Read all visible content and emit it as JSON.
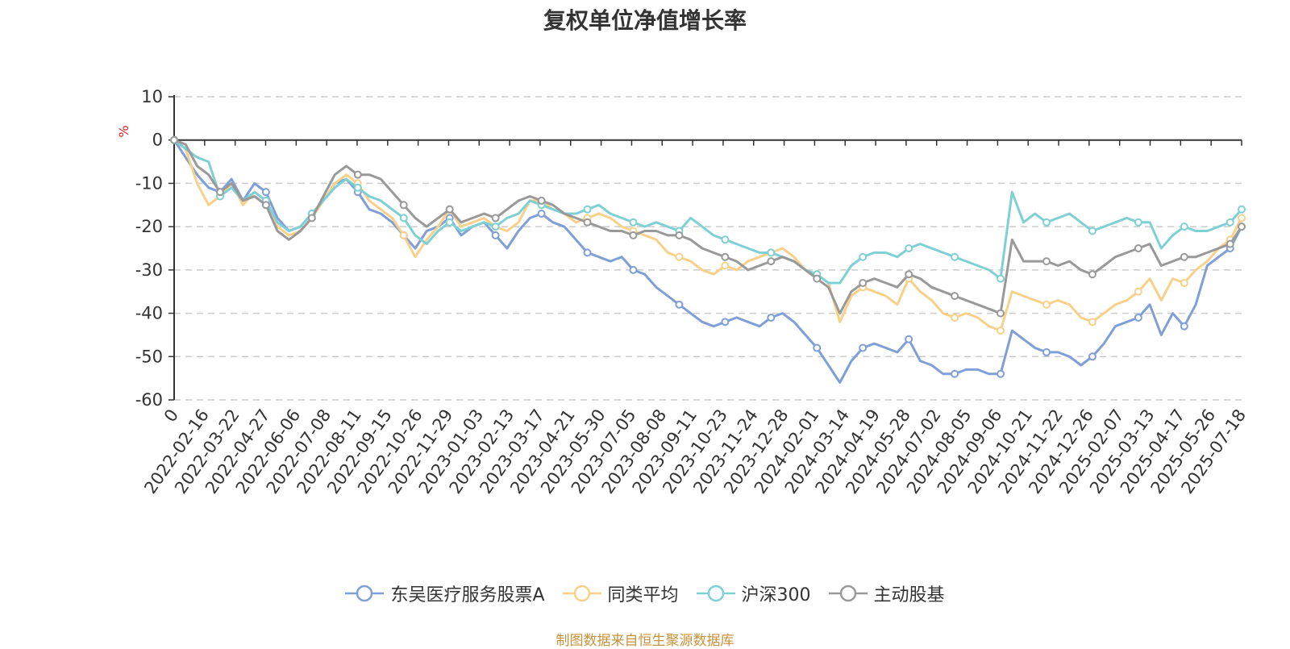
{
  "title": "复权单位净值增长率",
  "source": "制图数据来自恒生聚源数据库",
  "chart_data": {
    "type": "line",
    "title": "复权单位净值增长率",
    "ylabel": "%",
    "ylim": [
      -60,
      10
    ],
    "yticks": [
      10,
      0,
      -10,
      -20,
      -30,
      -40,
      -50,
      -60
    ],
    "grid": true,
    "legend_position": "bottom",
    "x_start": "2022-01-11",
    "x_end": "2025-07-18",
    "xtick_labels": [
      "0",
      "2022-02-16",
      "2022-03-22",
      "2022-04-27",
      "2022-06-06",
      "2022-07-08",
      "2022-08-11",
      "2022-09-15",
      "2022-10-26",
      "2022-11-29",
      "2023-01-03",
      "2023-02-13",
      "2023-03-17",
      "2023-04-21",
      "2023-05-30",
      "2023-07-05",
      "2023-08-08",
      "2023-09-11",
      "2023-10-23",
      "2023-11-24",
      "2023-12-28",
      "2024-02-01",
      "2024-03-14",
      "2024-04-19",
      "2024-05-28",
      "2024-07-02",
      "2024-08-05",
      "2024-09-06",
      "2024-10-21",
      "2024-11-22",
      "2024-12-26",
      "2025-02-07",
      "2025-03-13",
      "2025-04-17",
      "2025-05-26",
      "2025-07-18"
    ],
    "series": [
      {
        "name": "东吴医疗服务股票A",
        "color": "#7f9fd6",
        "values": [
          0,
          -4,
          -8,
          -11,
          -12,
          -9,
          -14,
          -10,
          -12,
          -18,
          -21,
          -20,
          -17,
          -14,
          -10,
          -9,
          -12,
          -16,
          -17,
          -19,
          -22,
          -25,
          -21,
          -20,
          -18,
          -22,
          -20,
          -19,
          -22,
          -25,
          -21,
          -18,
          -17,
          -19,
          -20,
          -23,
          -26,
          -27,
          -28,
          -27,
          -30,
          -31,
          -34,
          -36,
          -38,
          -40,
          -42,
          -43,
          -42,
          -41,
          -42,
          -43,
          -41,
          -40,
          -42,
          -45,
          -48,
          -52,
          -56,
          -51,
          -48,
          -47,
          -48,
          -49,
          -46,
          -51,
          -52,
          -54,
          -54,
          -53,
          -53,
          -54,
          -54,
          -44,
          -46,
          -48,
          -49,
          -49,
          -50,
          -52,
          -50,
          -47,
          -43,
          -42,
          -41,
          -38,
          -45,
          -40,
          -43,
          -38,
          -29,
          -27,
          -25,
          -20
        ]
      },
      {
        "name": "同类平均",
        "color": "#f7d08a",
        "values": [
          0,
          -2,
          -10,
          -15,
          -13,
          -10,
          -15,
          -12,
          -14,
          -20,
          -22,
          -21,
          -18,
          -14,
          -10,
          -8,
          -10,
          -14,
          -16,
          -18,
          -22,
          -27,
          -23,
          -20,
          -16,
          -20,
          -19,
          -18,
          -20,
          -21,
          -19,
          -14,
          -14,
          -16,
          -17,
          -19,
          -18,
          -17,
          -18,
          -20,
          -21,
          -22,
          -23,
          -26,
          -27,
          -28,
          -30,
          -31,
          -29,
          -30,
          -28,
          -27,
          -26,
          -25,
          -27,
          -30,
          -31,
          -33,
          -42,
          -36,
          -34,
          -35,
          -36,
          -38,
          -32,
          -35,
          -37,
          -40,
          -41,
          -40,
          -41,
          -43,
          -44,
          -35,
          -36,
          -37,
          -38,
          -37,
          -38,
          -41,
          -42,
          -40,
          -38,
          -37,
          -35,
          -32,
          -37,
          -32,
          -33,
          -30,
          -28,
          -25,
          -23,
          -18
        ]
      },
      {
        "name": "沪深300",
        "color": "#7ed0d4",
        "values": [
          0,
          -2,
          -4,
          -5,
          -13,
          -11,
          -14,
          -12,
          -14,
          -19,
          -21,
          -20,
          -17,
          -14,
          -11,
          -9,
          -11,
          -13,
          -14,
          -16,
          -18,
          -22,
          -24,
          -21,
          -19,
          -21,
          -20,
          -19,
          -20,
          -18,
          -17,
          -14,
          -15,
          -16,
          -17,
          -17,
          -16,
          -15,
          -17,
          -18,
          -19,
          -20,
          -19,
          -20,
          -21,
          -18,
          -20,
          -22,
          -23,
          -24,
          -25,
          -26,
          -26,
          -27,
          -28,
          -30,
          -31,
          -33,
          -33,
          -29,
          -27,
          -26,
          -26,
          -27,
          -25,
          -24,
          -25,
          -26,
          -27,
          -28,
          -29,
          -30,
          -32,
          -12,
          -19,
          -17,
          -19,
          -18,
          -17,
          -19,
          -21,
          -20,
          -19,
          -18,
          -19,
          -19,
          -25,
          -22,
          -20,
          -21,
          -21,
          -20,
          -19,
          -16
        ]
      },
      {
        "name": "主动股基",
        "color": "#999999",
        "values": [
          0,
          -1,
          -6,
          -8,
          -12,
          -10,
          -14,
          -13,
          -15,
          -21,
          -23,
          -21,
          -18,
          -13,
          -8,
          -6,
          -8,
          -8,
          -9,
          -12,
          -15,
          -18,
          -20,
          -18,
          -16,
          -19,
          -18,
          -17,
          -18,
          -16,
          -14,
          -13,
          -14,
          -15,
          -17,
          -18,
          -19,
          -20,
          -21,
          -21,
          -22,
          -21,
          -21,
          -22,
          -22,
          -23,
          -25,
          -26,
          -27,
          -28,
          -30,
          -29,
          -28,
          -27,
          -28,
          -30,
          -32,
          -34,
          -40,
          -35,
          -33,
          -32,
          -33,
          -34,
          -31,
          -32,
          -34,
          -35,
          -36,
          -37,
          -38,
          -39,
          -40,
          -23,
          -28,
          -28,
          -28,
          -29,
          -28,
          -30,
          -31,
          -29,
          -27,
          -26,
          -25,
          -24,
          -29,
          -28,
          -27,
          -27,
          -26,
          -25,
          -24,
          -20
        ]
      }
    ]
  }
}
